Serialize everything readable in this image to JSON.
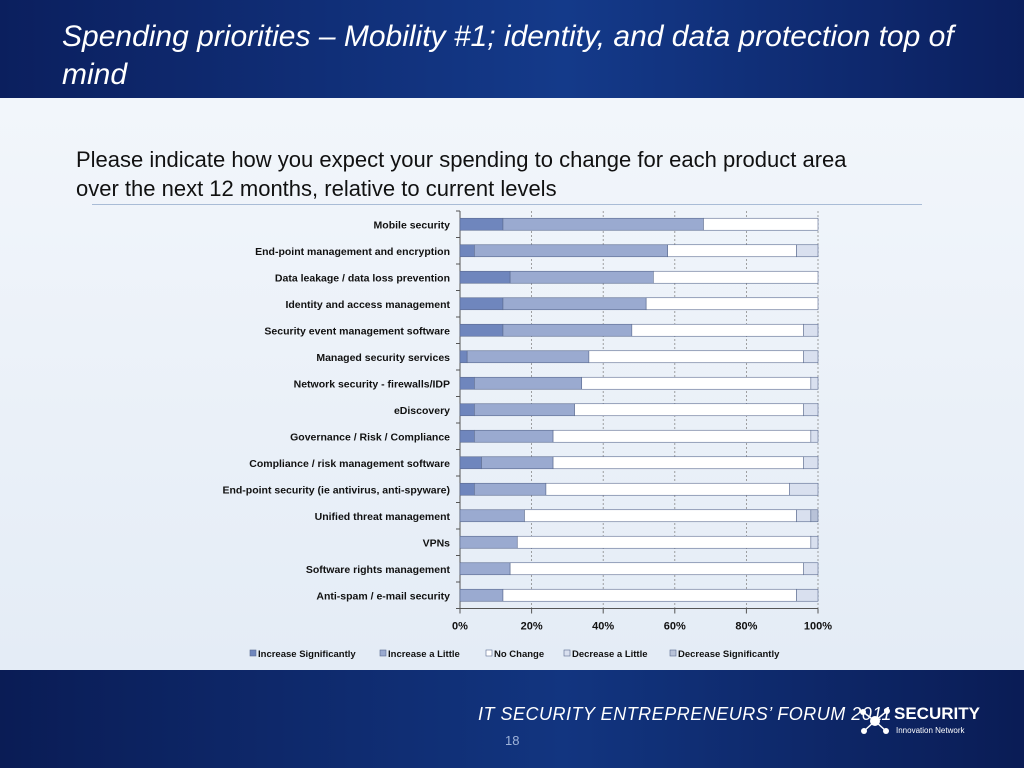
{
  "slide": {
    "title": "Spending priorities – Mobility #1; identity, and data protection top of mind",
    "question": "Please indicate how you expect your spending to change for each product area over the next 12 months, relative to current levels",
    "footer_text": "IT SECURITY ENTREPRENEURS’ FORUM 2011",
    "logo_word": "SECURITY",
    "logo_sub": "Innovation Network",
    "page_number": "18"
  },
  "colors": {
    "increase_significantly": "#6f86bd",
    "increase_a_little": "#9aaad0",
    "no_change": "#ffffff",
    "decrease_a_little": "#d9e0ef",
    "decrease_significantly": "#b8c2d8"
  },
  "chart_data": {
    "type": "bar",
    "orientation": "horizontal",
    "stacked": true,
    "xlim": [
      0,
      100
    ],
    "xticks": [
      "0%",
      "20%",
      "40%",
      "60%",
      "80%",
      "100%"
    ],
    "legend_position": "bottom",
    "grid": "dashed vertical",
    "categories": [
      "Mobile security",
      "End-point management and encryption",
      "Data leakage / data loss prevention",
      "Identity and access management",
      "Security event management software",
      "Managed security services",
      "Network security - firewalls/IDP",
      "eDiscovery",
      "Governance / Risk / Compliance",
      "Compliance / risk management software",
      "End-point security (ie antivirus, anti-spyware)",
      "Unified threat management",
      "VPNs",
      "Software rights management",
      "Anti-spam / e-mail security"
    ],
    "series": [
      {
        "name": "Increase Significantly",
        "values": [
          12,
          4,
          14,
          12,
          12,
          2,
          4,
          4,
          4,
          6,
          4,
          0,
          0,
          0,
          0
        ]
      },
      {
        "name": "Increase a Little",
        "values": [
          56,
          54,
          40,
          40,
          36,
          34,
          30,
          28,
          22,
          20,
          20,
          18,
          16,
          14,
          12
        ]
      },
      {
        "name": "No Change",
        "values": [
          32,
          36,
          46,
          48,
          48,
          60,
          64,
          64,
          72,
          70,
          68,
          76,
          82,
          82,
          82
        ]
      },
      {
        "name": "Decrease a Little",
        "values": [
          0,
          6,
          0,
          0,
          4,
          4,
          2,
          4,
          2,
          4,
          8,
          4,
          2,
          4,
          6
        ]
      },
      {
        "name": "Decrease Significantly",
        "values": [
          0,
          0,
          0,
          0,
          0,
          0,
          0,
          0,
          0,
          0,
          0,
          2,
          0,
          0,
          0
        ]
      }
    ]
  }
}
